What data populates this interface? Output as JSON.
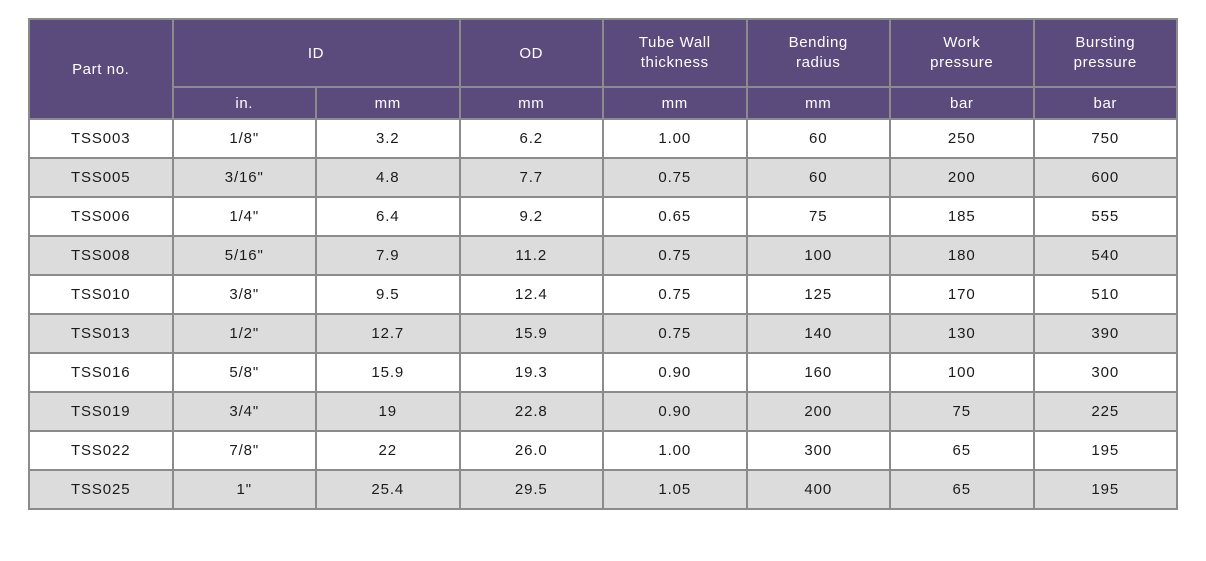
{
  "colors": {
    "header_bg": "#5b4a7c",
    "header_text": "#ffffff",
    "grid_border": "#8b8b8b",
    "row_bg": "#ffffff",
    "row_alt_bg": "#dcdcdc",
    "body_text": "#1b1b1b",
    "page_bg": "#ffffff"
  },
  "table": {
    "header": {
      "part_no": "Part no.",
      "id": "ID",
      "od": "OD",
      "tube_wall": [
        "Tube Wall",
        "thickness"
      ],
      "bending_radius": [
        "Bending",
        "radius"
      ],
      "work_pressure": [
        "Work",
        "pressure"
      ],
      "bursting_pressure": [
        "Bursting",
        "pressure"
      ],
      "units": {
        "id_in": "in.",
        "id_mm": "mm",
        "od": "mm",
        "tube_wall": "mm",
        "bending_radius": "mm",
        "work_pressure": "bar",
        "bursting_pressure": "bar"
      }
    },
    "rows": [
      [
        "TSS003",
        "1/8\"",
        "3.2",
        "6.2",
        "1.00",
        "60",
        "250",
        "750"
      ],
      [
        "TSS005",
        "3/16\"",
        "4.8",
        "7.7",
        "0.75",
        "60",
        "200",
        "600"
      ],
      [
        "TSS006",
        "1/4\"",
        "6.4",
        "9.2",
        "0.65",
        "75",
        "185",
        "555"
      ],
      [
        "TSS008",
        "5/16\"",
        "7.9",
        "11.2",
        "0.75",
        "100",
        "180",
        "540"
      ],
      [
        "TSS010",
        "3/8\"",
        "9.5",
        "12.4",
        "0.75",
        "125",
        "170",
        "510"
      ],
      [
        "TSS013",
        "1/2\"",
        "12.7",
        "15.9",
        "0.75",
        "140",
        "130",
        "390"
      ],
      [
        "TSS016",
        "5/8\"",
        "15.9",
        "19.3",
        "0.90",
        "160",
        "100",
        "300"
      ],
      [
        "TSS019",
        "3/4\"",
        "19",
        "22.8",
        "0.90",
        "200",
        "75",
        "225"
      ],
      [
        "TSS022",
        "7/8\"",
        "22",
        "26.0",
        "1.00",
        "300",
        "65",
        "195"
      ],
      [
        "TSS025",
        "1\"",
        "25.4",
        "29.5",
        "1.05",
        "400",
        "65",
        "195"
      ]
    ]
  }
}
